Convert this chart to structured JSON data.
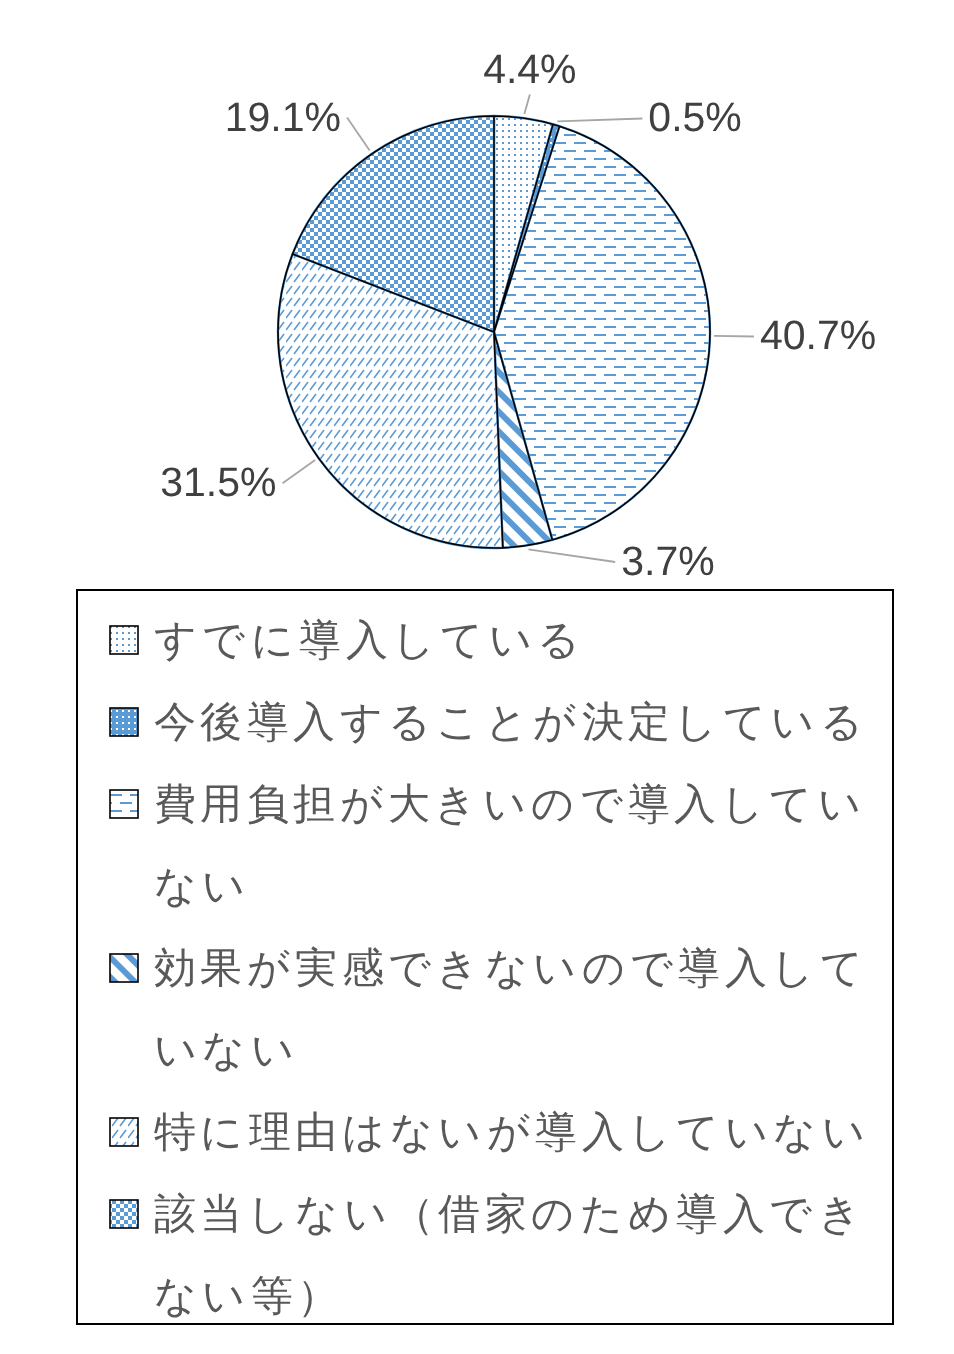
{
  "chart_data": {
    "type": "pie",
    "categories": [
      "すでに導入している",
      "今後導入することが決定している",
      "費用負担が大きいので導入していない",
      "効果が実感できないので導入していない",
      "特に理由はないが導入していない",
      "該当しない（借家のため導入できない等）"
    ],
    "values": [
      4.4,
      0.5,
      40.7,
      3.7,
      31.5,
      19.1
    ],
    "colors": [
      "#5b9bd5",
      "#5b9bd5",
      "#5b9bd5",
      "#5b9bd5",
      "#5b9bd5",
      "#5b9bd5"
    ],
    "value_labels": [
      "4.4%",
      "0.5%",
      "40.7%",
      "3.7%",
      "31.5%",
      "19.1%"
    ],
    "legend": "bottom"
  }
}
